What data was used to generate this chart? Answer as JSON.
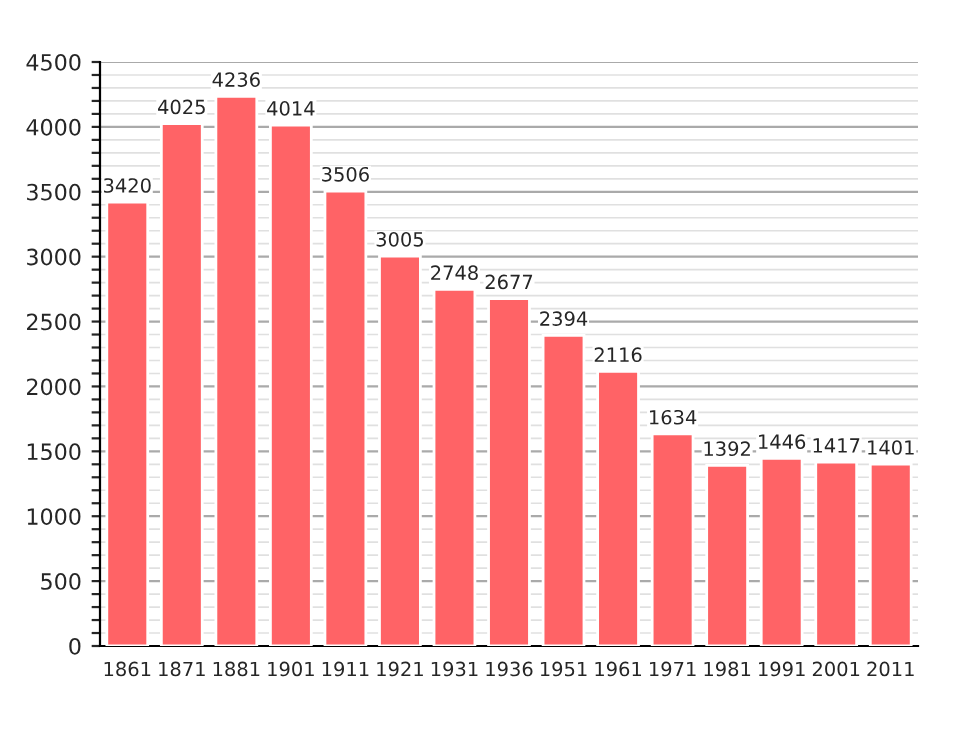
{
  "chart_data": {
    "type": "bar",
    "categories": [
      "1861",
      "1871",
      "1881",
      "1901",
      "1911",
      "1921",
      "1931",
      "1936",
      "1951",
      "1961",
      "1971",
      "1981",
      "1991",
      "2001",
      "2011"
    ],
    "values": [
      3420,
      4025,
      4236,
      4014,
      3506,
      3005,
      2748,
      2677,
      2394,
      2116,
      1634,
      1392,
      1446,
      1417,
      1401
    ],
    "color": "#ff6366",
    "ylim": [
      0,
      4500
    ],
    "yticks": [
      0,
      500,
      1000,
      1500,
      2000,
      2500,
      3000,
      3500,
      4000,
      4500
    ],
    "grid": "y",
    "data_labels": true
  }
}
